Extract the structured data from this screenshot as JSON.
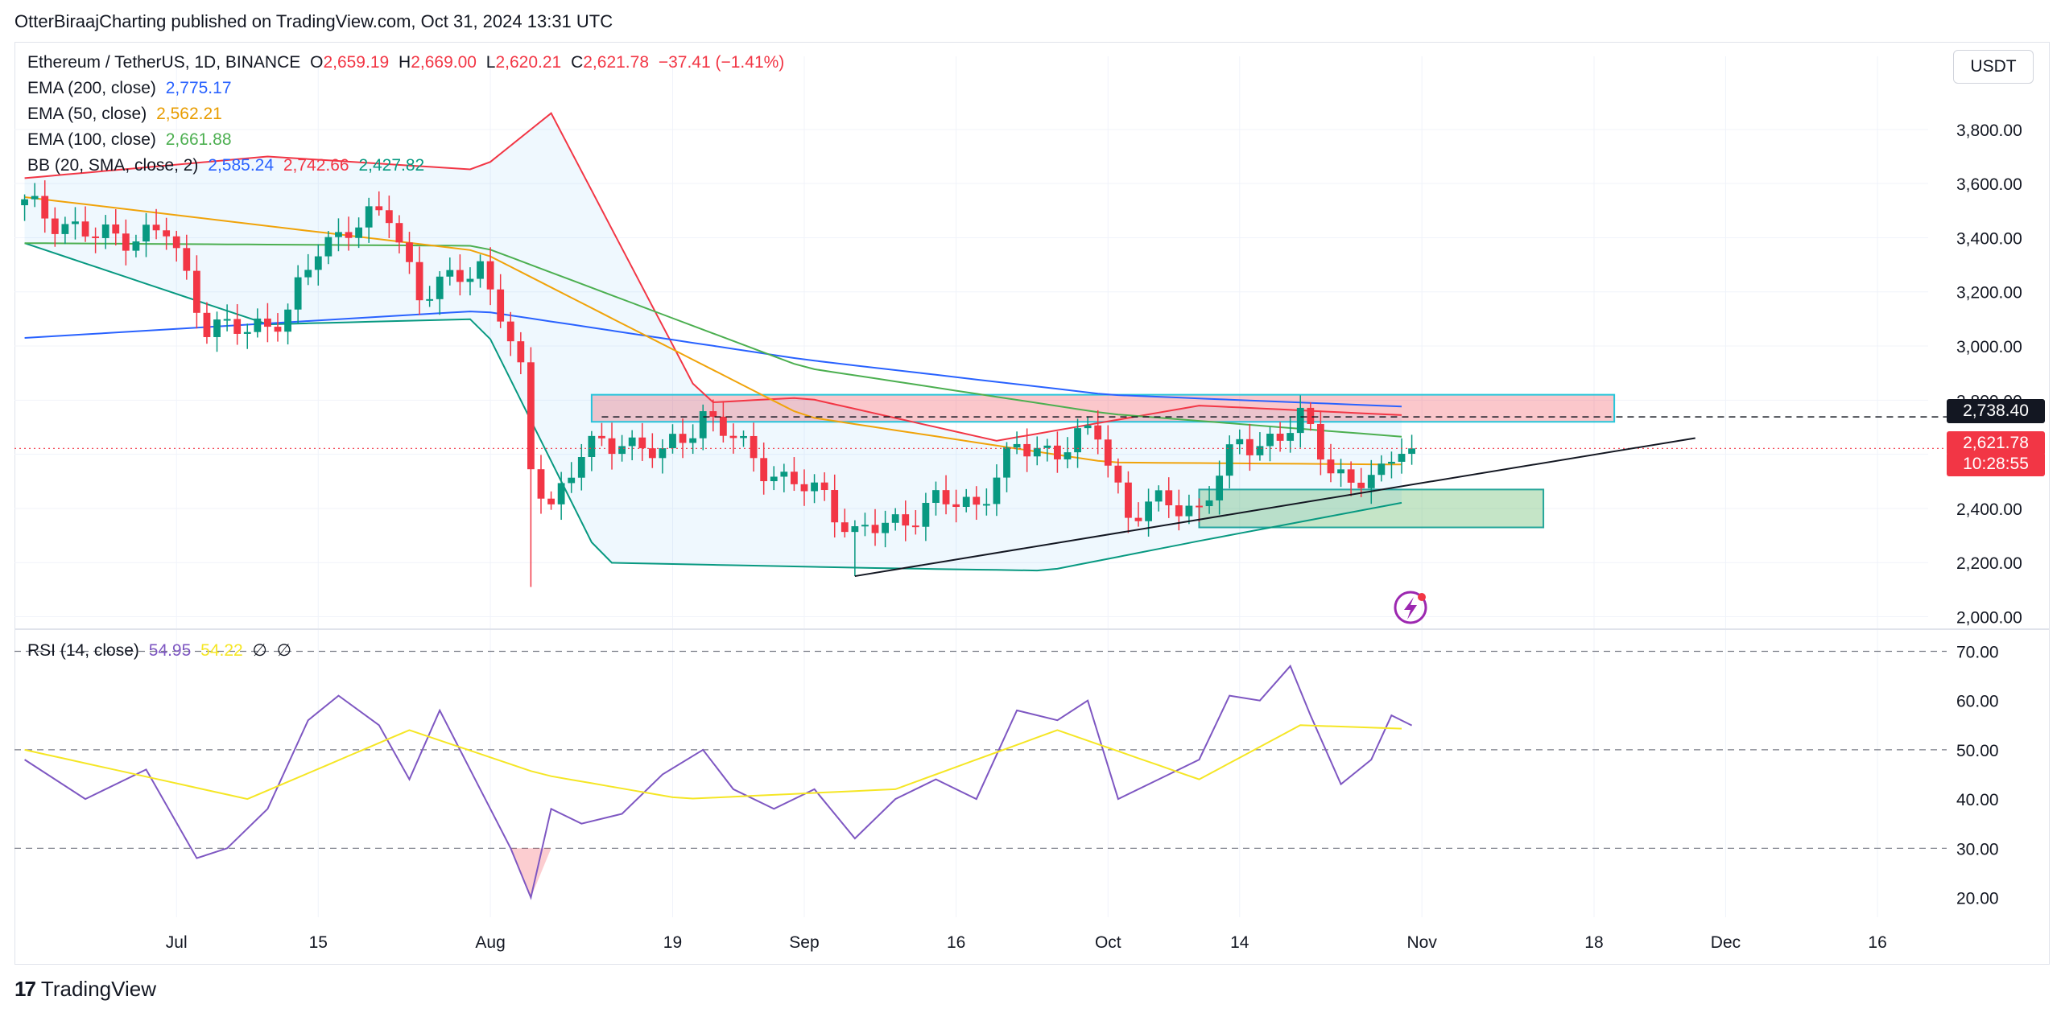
{
  "header": {
    "publisher_line": "OtterBiraajCharting published on TradingView.com, Oct 31, 2024 13:31 UTC"
  },
  "symbol": {
    "name": "Ethereum / TetherUS, 1D, BINANCE",
    "open_label": "O",
    "open": "2,659.19",
    "high_label": "H",
    "high": "2,669.00",
    "low_label": "L",
    "low": "2,620.21",
    "close_label": "C",
    "close": "2,621.78",
    "change": "−37.41 (−1.41%)"
  },
  "indicators": {
    "ema200": {
      "label": "EMA (200, close)",
      "value": "2,775.17",
      "color": "#2962ff"
    },
    "ema50": {
      "label": "EMA (50, close)",
      "value": "2,562.21",
      "color": "#f0a30a"
    },
    "ema100": {
      "label": "EMA (100, close)",
      "value": "2,661.88",
      "color": "#4caf50"
    },
    "bb": {
      "label": "BB (20, SMA, close, 2)",
      "basis": "2,585.24",
      "upper": "2,742.66",
      "lower": "2,427.82",
      "basis_color": "#2962ff",
      "upper_color": "#f23645",
      "lower_color": "#089981"
    },
    "rsi": {
      "label": "RSI (14, close)",
      "value": "54.95",
      "ma": "54.22",
      "extra1": "∅",
      "extra2": "∅",
      "color": "#7e57c2",
      "ma_color": "#f5e625"
    }
  },
  "currency_button": "USDT",
  "price_labels": {
    "level": "2,738.40",
    "last": "2,621.78",
    "countdown": "10:28:55"
  },
  "colors": {
    "up": "#089981",
    "down": "#f23645",
    "grid": "#f0f3fa"
  },
  "footer": {
    "brand": "TradingView"
  },
  "chart_data": {
    "type": "candlestick",
    "symbol": "ETHUSDT",
    "y_ticks": [
      "3,800.00",
      "3,600.00",
      "3,400.00",
      "3,200.00",
      "3,000.00",
      "2,800.00",
      "2,600.00",
      "2,400.00",
      "2,200.00",
      "2,000.00"
    ],
    "y_tick_values": [
      3800,
      3600,
      3400,
      3200,
      3000,
      2800,
      2600,
      2400,
      2200,
      2000
    ],
    "ylim": [
      1960,
      4070
    ],
    "x_ticks": [
      {
        "label": "Jul",
        "date": "2024-07-01"
      },
      {
        "label": "15",
        "date": "2024-07-15"
      },
      {
        "label": "Aug",
        "date": "2024-08-01"
      },
      {
        "label": "19",
        "date": "2024-08-19"
      },
      {
        "label": "Sep",
        "date": "2024-09-01"
      },
      {
        "label": "16",
        "date": "2024-09-16"
      },
      {
        "label": "Oct",
        "date": "2024-10-01"
      },
      {
        "label": "14",
        "date": "2024-10-14"
      },
      {
        "label": "Nov",
        "date": "2024-11-01"
      },
      {
        "label": "18",
        "date": "2024-11-18"
      },
      {
        "label": "Dec",
        "date": "2024-12-01"
      },
      {
        "label": "16",
        "date": "2024-12-16"
      }
    ],
    "xlim": [
      "2024-06-15",
      "2024-12-21"
    ],
    "close_series": {
      "dates": [
        "2024-06-16",
        "2024-06-23",
        "2024-06-30",
        "2024-07-04",
        "2024-07-08",
        "2024-07-12",
        "2024-07-15",
        "2024-07-18",
        "2024-07-22",
        "2024-07-25",
        "2024-07-28",
        "2024-07-31",
        "2024-08-02",
        "2024-08-04",
        "2024-08-05",
        "2024-08-07",
        "2024-08-10",
        "2024-08-14",
        "2024-08-18",
        "2024-08-22",
        "2024-08-26",
        "2024-08-30",
        "2024-09-03",
        "2024-09-06",
        "2024-09-10",
        "2024-09-14",
        "2024-09-18",
        "2024-09-22",
        "2024-09-26",
        "2024-09-30",
        "2024-10-03",
        "2024-10-07",
        "2024-10-10",
        "2024-10-14",
        "2024-10-18",
        "2024-10-20",
        "2024-10-22",
        "2024-10-25",
        "2024-10-28",
        "2024-10-30",
        "2024-10-31"
      ],
      "values": [
        3520,
        3400,
        3420,
        3080,
        3050,
        3130,
        3350,
        3450,
        3480,
        3200,
        3230,
        3300,
        3130,
        2880,
        2540,
        2420,
        2600,
        2660,
        2590,
        2750,
        2620,
        2500,
        2450,
        2300,
        2350,
        2420,
        2420,
        2620,
        2620,
        2680,
        2380,
        2420,
        2400,
        2640,
        2660,
        2730,
        2620,
        2480,
        2520,
        2660,
        2621.78
      ]
    },
    "ohlc_sampled": [
      {
        "date": "2024-08-05",
        "low": 2110
      },
      {
        "date": "2024-09-06",
        "low": 2150
      }
    ],
    "ema200": {
      "dates": [
        "2024-06-16",
        "2024-07-31",
        "2024-09-01",
        "2024-10-01",
        "2024-10-31"
      ],
      "values": [
        3030,
        3130,
        2950,
        2820,
        2775
      ]
    },
    "ema100": {
      "dates": [
        "2024-06-16",
        "2024-07-31",
        "2024-09-01",
        "2024-10-01",
        "2024-10-31"
      ],
      "values": [
        3380,
        3370,
        2920,
        2750,
        2662
      ]
    },
    "ema50": {
      "dates": [
        "2024-06-16",
        "2024-07-31",
        "2024-09-01",
        "2024-10-01",
        "2024-10-31"
      ],
      "values": [
        3550,
        3350,
        2740,
        2570,
        2562
      ]
    },
    "bb_upper": {
      "dates": [
        "2024-06-16",
        "2024-07-10",
        "2024-07-31",
        "2024-08-07",
        "2024-08-22",
        "2024-09-01",
        "2024-09-20",
        "2024-10-10",
        "2024-10-31"
      ],
      "values": [
        3620,
        3700,
        3650,
        3860,
        2790,
        2810,
        2650,
        2780,
        2743
      ]
    },
    "bb_lower": {
      "dates": [
        "2024-06-16",
        "2024-07-10",
        "2024-07-31",
        "2024-08-12",
        "2024-09-08",
        "2024-09-25",
        "2024-10-10",
        "2024-10-31"
      ],
      "values": [
        3380,
        3080,
        3100,
        2200,
        2180,
        2170,
        2280,
        2428
      ]
    },
    "resistance_zone": {
      "from": "2024-08-11",
      "to": "2024-11-20",
      "low": 2720,
      "high": 2820
    },
    "support_zone": {
      "from": "2024-10-10",
      "to": "2024-11-13",
      "low": 2330,
      "high": 2470
    },
    "level_line": 2738.4,
    "last_price": 2621.78,
    "trendline": {
      "from": {
        "date": "2024-09-06",
        "value": 2150
      },
      "to": {
        "date": "2024-11-28",
        "value": 2660
      }
    },
    "rsi": {
      "y_ticks": [
        "70.00",
        "60.00",
        "50.00",
        "40.00",
        "30.00",
        "20.00"
      ],
      "y_tick_values": [
        70,
        60,
        50,
        40,
        30,
        20
      ],
      "ylim": [
        16,
        74
      ],
      "levels": [
        70,
        50,
        30
      ],
      "dates": [
        "2024-06-16",
        "2024-06-22",
        "2024-06-28",
        "2024-07-03",
        "2024-07-06",
        "2024-07-10",
        "2024-07-14",
        "2024-07-17",
        "2024-07-21",
        "2024-07-24",
        "2024-07-27",
        "2024-07-31",
        "2024-08-03",
        "2024-08-05",
        "2024-08-07",
        "2024-08-10",
        "2024-08-14",
        "2024-08-18",
        "2024-08-22",
        "2024-08-25",
        "2024-08-29",
        "2024-09-02",
        "2024-09-06",
        "2024-09-10",
        "2024-09-14",
        "2024-09-18",
        "2024-09-22",
        "2024-09-26",
        "2024-09-29",
        "2024-10-02",
        "2024-10-06",
        "2024-10-10",
        "2024-10-13",
        "2024-10-16",
        "2024-10-19",
        "2024-10-21",
        "2024-10-24",
        "2024-10-27",
        "2024-10-29",
        "2024-10-31"
      ],
      "values": [
        48,
        40,
        46,
        28,
        30,
        38,
        56,
        61,
        55,
        44,
        58,
        42,
        30,
        20,
        38,
        35,
        37,
        45,
        50,
        42,
        38,
        42,
        32,
        40,
        44,
        40,
        58,
        56,
        60,
        40,
        44,
        48,
        61,
        60,
        67,
        57,
        43,
        48,
        57,
        54.95
      ],
      "ma_dates": [
        "2024-06-16",
        "2024-07-08",
        "2024-07-24",
        "2024-08-06",
        "2024-08-20",
        "2024-09-10",
        "2024-09-26",
        "2024-10-10",
        "2024-10-20",
        "2024-10-31"
      ],
      "ma_values": [
        50,
        40,
        54,
        45,
        40,
        42,
        54,
        44,
        55,
        54.22
      ]
    }
  }
}
